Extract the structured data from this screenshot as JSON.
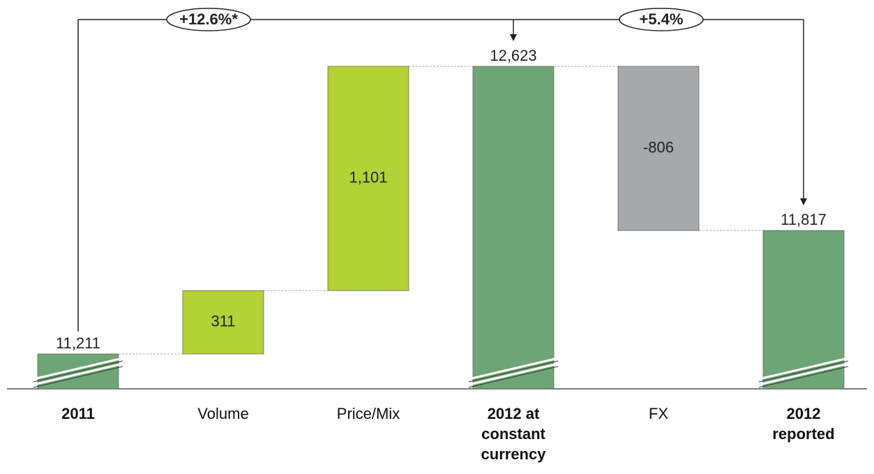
{
  "chart_data": {
    "type": "waterfall",
    "categories": [
      "2011",
      "Volume",
      "Price/Mix",
      "2012 at constant currency",
      "FX",
      "2012 reported"
    ],
    "values": [
      11211,
      311,
      1101,
      12623,
      -806,
      11817
    ],
    "value_labels": [
      "11,211",
      "311",
      "1,101",
      "12,623",
      "-806",
      "11,817"
    ],
    "bar_types": [
      "total",
      "increase",
      "increase",
      "total",
      "decrease",
      "total"
    ],
    "colors": {
      "total": "#6ea576",
      "increase": "#b2d235",
      "decrease": "#a6a8ab"
    },
    "annotations": [
      "+12.6%*",
      "+5.4%"
    ]
  }
}
